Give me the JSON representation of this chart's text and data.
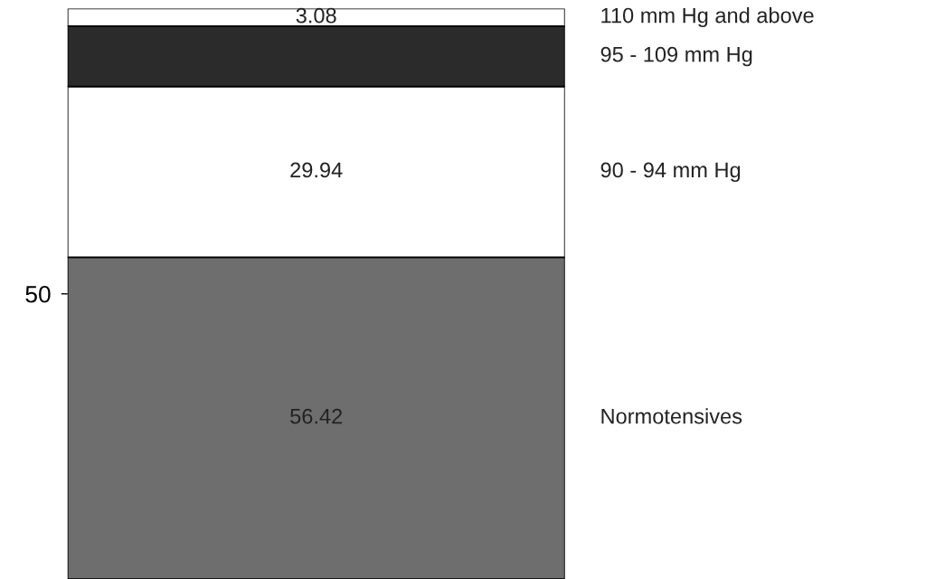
{
  "chart_data": {
    "type": "bar",
    "stacked": true,
    "categories": [
      null
    ],
    "series": [
      {
        "name": "Normotensives",
        "color": "#6e6e6e",
        "values": [
          56.42
        ],
        "value_labels": [
          "56.42"
        ]
      },
      {
        "name": "90 - 94 mm Hg",
        "color": "#ffffff",
        "values": [
          29.94
        ],
        "value_labels": [
          "29.94"
        ]
      },
      {
        "name": "95 - 109 mm Hg",
        "color": "#2b2b2b",
        "values": [
          10.6
        ],
        "value_labels": [
          null
        ]
      },
      {
        "name": "110 mm Hg and above",
        "color": "#ffffff",
        "values": [
          3.08
        ],
        "value_labels": [
          "3.08"
        ]
      }
    ],
    "ylim": [
      0,
      100
    ],
    "yticks": [
      50
    ],
    "grid": false,
    "legend": false
  }
}
